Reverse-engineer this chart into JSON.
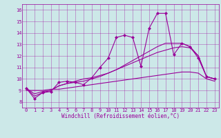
{
  "title": "",
  "xlabel": "Windchill (Refroidissement éolien,°C)",
  "ylabel": "",
  "background_color": "#cce8e8",
  "line_color": "#990099",
  "xlim": [
    -0.5,
    23.5
  ],
  "ylim": [
    7.5,
    16.5
  ],
  "xticks": [
    0,
    1,
    2,
    3,
    4,
    5,
    6,
    7,
    8,
    9,
    10,
    11,
    12,
    13,
    14,
    15,
    16,
    17,
    18,
    19,
    20,
    21,
    22,
    23
  ],
  "yticks": [
    8,
    9,
    10,
    11,
    12,
    13,
    14,
    15,
    16
  ],
  "series": [
    [
      9.2,
      8.3,
      8.8,
      8.9,
      9.7,
      9.8,
      9.7,
      9.5,
      10.1,
      11.0,
      11.8,
      13.6,
      13.8,
      13.6,
      11.1,
      14.4,
      15.7,
      15.7,
      12.1,
      13.1,
      12.8,
      11.8,
      10.2,
      10.0
    ],
    [
      9.2,
      8.7,
      8.9,
      9.0,
      9.4,
      9.6,
      9.8,
      10.0,
      10.1,
      10.3,
      10.5,
      10.8,
      11.1,
      11.4,
      11.7,
      12.0,
      12.3,
      12.5,
      12.7,
      12.8,
      12.7,
      12.0,
      10.2,
      10.0
    ],
    [
      9.2,
      8.5,
      8.8,
      9.0,
      9.4,
      9.6,
      9.7,
      9.8,
      10.0,
      10.2,
      10.5,
      10.8,
      11.2,
      11.6,
      12.0,
      12.4,
      12.8,
      13.1,
      13.1,
      13.1,
      12.8,
      12.0,
      10.2,
      10.0
    ],
    [
      9.0,
      9.0,
      9.0,
      9.1,
      9.1,
      9.2,
      9.3,
      9.4,
      9.5,
      9.6,
      9.7,
      9.8,
      9.9,
      10.0,
      10.1,
      10.2,
      10.3,
      10.4,
      10.5,
      10.6,
      10.6,
      10.5,
      10.0,
      9.8
    ]
  ],
  "marker_series": 0,
  "marker": "D",
  "markersize": 2.0,
  "linewidth": 0.8,
  "tick_fontsize": 5.0,
  "xlabel_fontsize": 5.5,
  "grid_alpha": 0.6,
  "grid_linewidth": 0.4
}
